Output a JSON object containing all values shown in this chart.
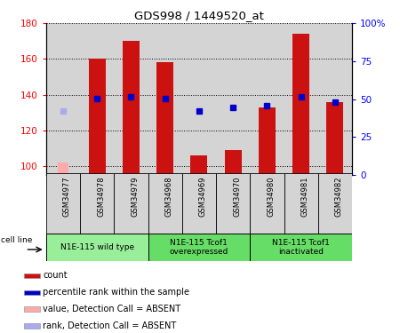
{
  "title": "GDS998 / 1449520_at",
  "samples": [
    "GSM34977",
    "GSM34978",
    "GSM34979",
    "GSM34968",
    "GSM34969",
    "GSM34970",
    "GSM34980",
    "GSM34981",
    "GSM34982"
  ],
  "count_values": [
    null,
    160,
    170,
    158,
    106,
    109,
    133,
    174,
    136
  ],
  "count_absent": [
    102,
    null,
    null,
    null,
    null,
    null,
    null,
    null,
    null
  ],
  "percentile_values": [
    null,
    138,
    139,
    138,
    131,
    133,
    134,
    139,
    136
  ],
  "percentile_absent": [
    131,
    null,
    null,
    null,
    null,
    null,
    null,
    null,
    null
  ],
  "ylim_left": [
    95,
    180
  ],
  "ylim_right": [
    0,
    100
  ],
  "yticks_left": [
    100,
    120,
    140,
    160,
    180
  ],
  "yticks_right": [
    0,
    25,
    50,
    75,
    100
  ],
  "ytick_labels_right": [
    "0",
    "25",
    "50",
    "75",
    "100%"
  ],
  "col_bg_color": "#d4d4d4",
  "bar_color_present": "#cc1111",
  "bar_color_absent": "#ffaaaa",
  "dot_color_present": "#0000cc",
  "dot_color_absent": "#aaaaee",
  "bar_width": 0.5,
  "absent_bar_width": 0.3,
  "cell_line_label": "cell line",
  "group_info": [
    {
      "label": "N1E-115 wild type",
      "xstart": 0,
      "xend": 2,
      "color": "#99ee99"
    },
    {
      "label": "N1E-115 Tcof1\noverexpressed",
      "xstart": 3,
      "xend": 5,
      "color": "#66dd66"
    },
    {
      "label": "N1E-115 Tcof1\ninactivated",
      "xstart": 6,
      "xend": 8,
      "color": "#66dd66"
    }
  ],
  "legend_items": [
    {
      "color": "#cc1111",
      "label": "count",
      "marker": "s"
    },
    {
      "color": "#0000cc",
      "label": "percentile rank within the sample",
      "marker": "s"
    },
    {
      "color": "#ffaaaa",
      "label": "value, Detection Call = ABSENT",
      "marker": "s"
    },
    {
      "color": "#aaaaee",
      "label": "rank, Detection Call = ABSENT",
      "marker": "s"
    }
  ]
}
